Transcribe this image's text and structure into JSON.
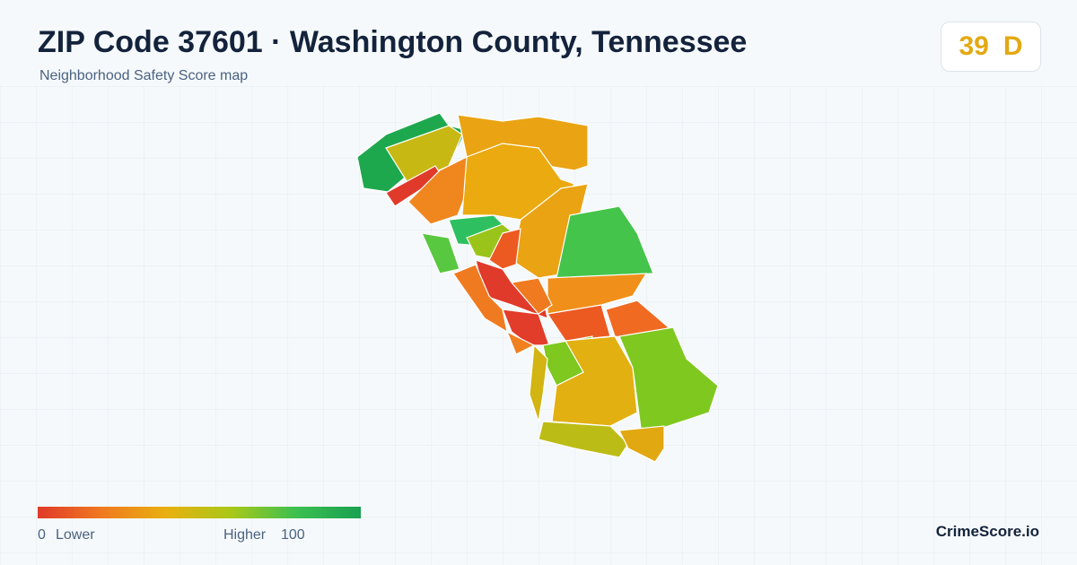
{
  "header": {
    "title": "ZIP Code 37601 · Washington County, Tennessee",
    "subtitle": "Neighborhood Safety Score map"
  },
  "score": {
    "value": "39",
    "grade": "D"
  },
  "legend": {
    "min": "0",
    "low_label": "Lower",
    "high_label": "Higher",
    "max": "100"
  },
  "brand": "CrimeScore.io"
}
